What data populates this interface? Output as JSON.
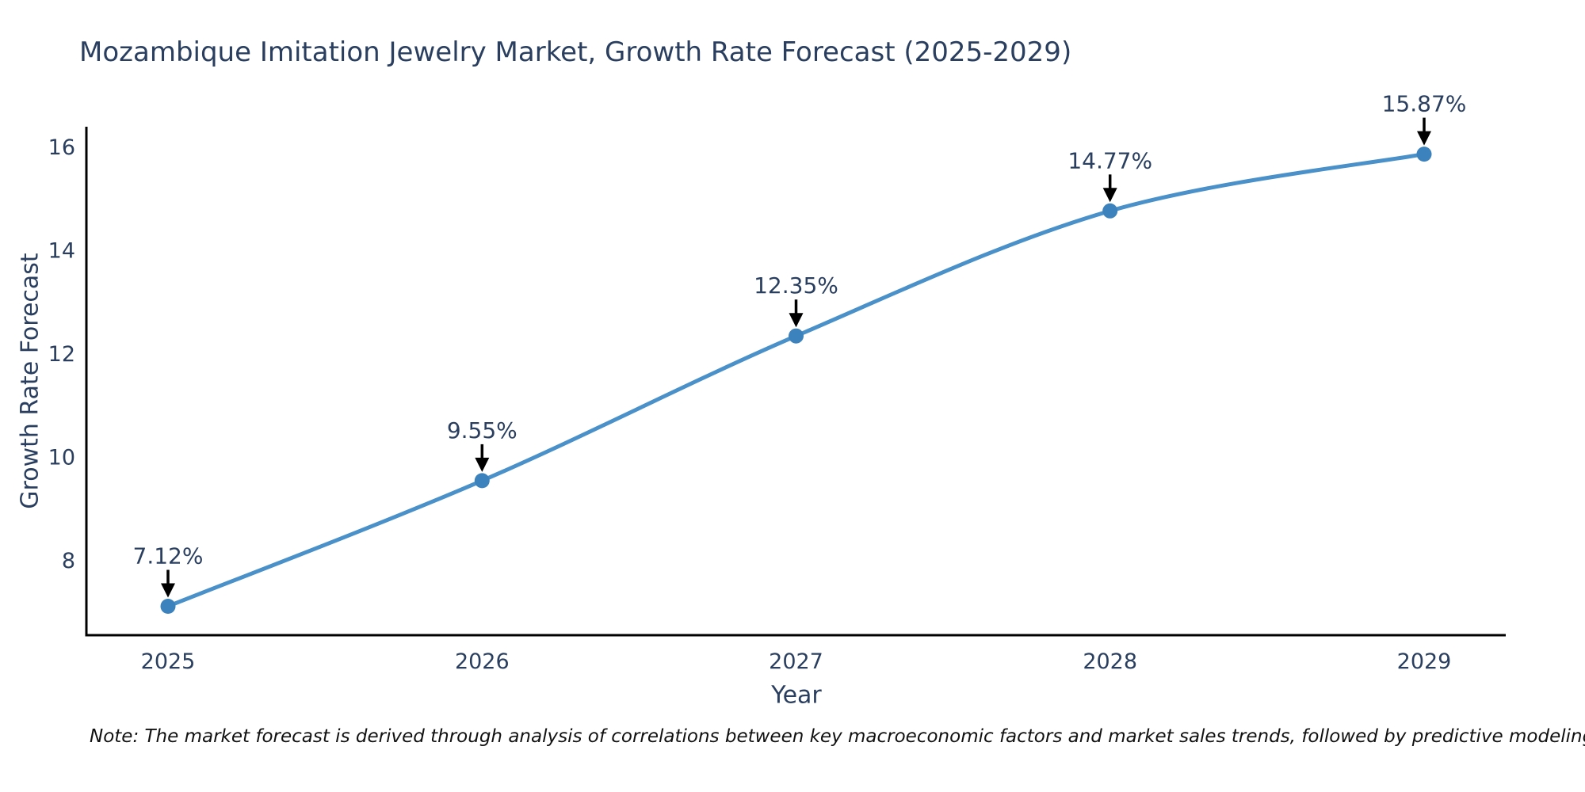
{
  "note": {
    "text": "Note: The market forecast is derived through analysis of correlations between key macroeconomic factors and market sales trends, followed by predictive modeling to project future sales"
  },
  "chart_data": {
    "type": "line",
    "title": "Mozambique Imitation Jewelry Market, Growth Rate Forecast (2025-2029)",
    "xlabel": "Year",
    "ylabel": "Growth Rate Forecast",
    "x": [
      2025,
      2026,
      2027,
      2028,
      2029
    ],
    "series": [
      {
        "name": "Growth Rate Forecast",
        "values": [
          7.12,
          9.55,
          12.35,
          14.77,
          15.87
        ]
      }
    ],
    "point_labels": [
      "7.12%",
      "9.55%",
      "12.35%",
      "14.77%",
      "15.87%"
    ],
    "xtick_labels": [
      "2025",
      "2026",
      "2027",
      "2028",
      "2029"
    ],
    "yticks": [
      8,
      10,
      12,
      14,
      16
    ],
    "ytick_labels": [
      "8",
      "10",
      "12",
      "14",
      "16"
    ],
    "xlim": [
      2024.74,
      2029.26
    ],
    "ylim": [
      6.56,
      16.4
    ],
    "line_shape": "spline",
    "grid": false,
    "legend_position": "none",
    "colors": {
      "line": "#4a90c9",
      "marker": "#3c82bc",
      "axis": "#000000",
      "text": "#2a3f5f",
      "annotation_arrow": "#000000"
    }
  }
}
